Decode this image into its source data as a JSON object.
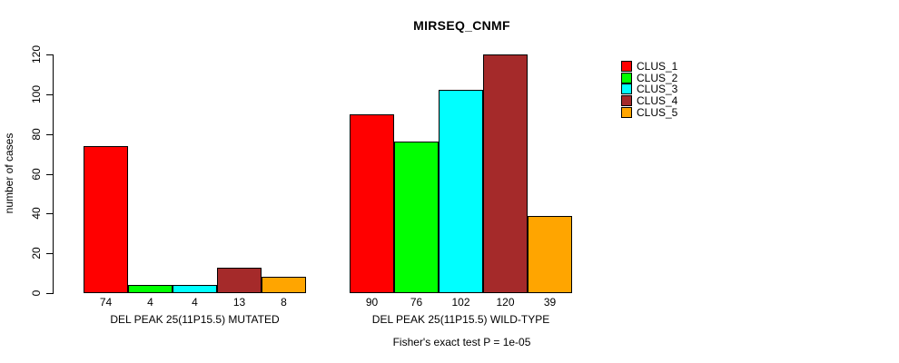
{
  "chart_data": {
    "type": "bar",
    "title": "MIRSEQ_CNMF",
    "ylabel": "number of cases",
    "xlabel": "",
    "ylim": [
      0,
      120
    ],
    "yticks": [
      0,
      20,
      40,
      60,
      80,
      100,
      120
    ],
    "grid": false,
    "legend_position": "right",
    "bar_border_color": "#000000",
    "categories": [
      "DEL PEAK 25(11P15.5) MUTATED",
      "DEL PEAK 25(11P15.5) WILD-TYPE"
    ],
    "series": [
      {
        "name": "CLUS_1",
        "color": "#FF0000",
        "values": [
          74,
          90
        ]
      },
      {
        "name": "CLUS_2",
        "color": "#00FF00",
        "values": [
          4,
          76
        ]
      },
      {
        "name": "CLUS_3",
        "color": "#00FFFF",
        "values": [
          4,
          102
        ]
      },
      {
        "name": "CLUS_4",
        "color": "#A52A2A",
        "values": [
          13,
          120
        ]
      },
      {
        "name": "CLUS_5",
        "color": "#FFA500",
        "values": [
          8,
          39
        ]
      }
    ],
    "bar_value_labels_shown": true,
    "annotation": "Fisher's exact test P = 1e-05"
  }
}
